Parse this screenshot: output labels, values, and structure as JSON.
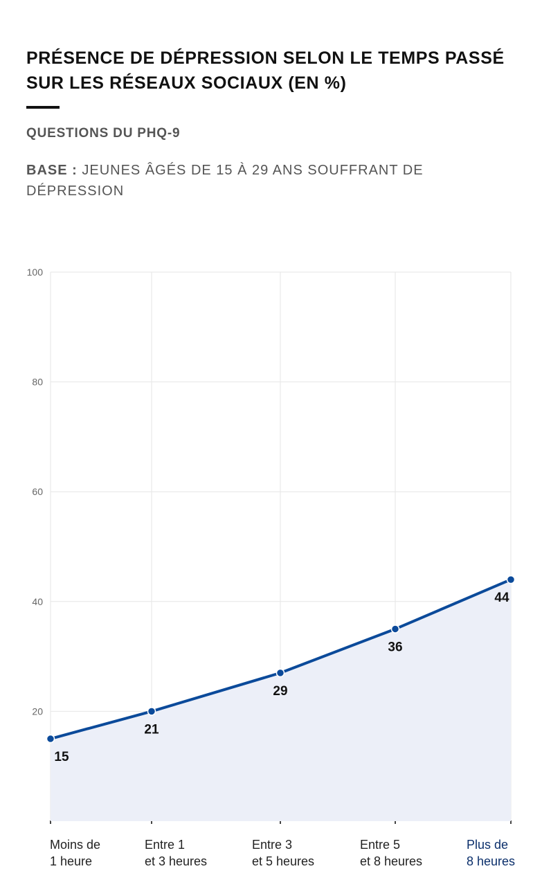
{
  "header": {
    "title": "PRÉSENCE DE DÉPRESSION SELON LE TEMPS PASSÉ SUR LES RÉSEAUX SOCIAUX (EN %)",
    "subtitle": "QUESTIONS DU PHQ-9",
    "base_label": "BASE :",
    "base_text": "JEUNES ÂGÉS DE 15 À 29 ANS SOUFFRANT DE DÉPRESSION"
  },
  "colors": {
    "line": "#0b4a9a",
    "area": "#eceff8",
    "grid": "#e6e6e6",
    "last_category": "#0b2f6b"
  },
  "chart_data": {
    "type": "area",
    "title": "PRÉSENCE DE DÉPRESSION SELON LE TEMPS PASSÉ SUR LES RÉSEAUX SOCIAUX (EN %)",
    "xlabel": "",
    "ylabel": "",
    "ylim": [
      0,
      100
    ],
    "yticks": [
      20,
      40,
      60,
      80,
      100
    ],
    "grid": true,
    "categories": [
      [
        "Moins de",
        "1 heure"
      ],
      [
        "Entre 1",
        "et 3 heures"
      ],
      [
        "Entre 3",
        "et 5 heures"
      ],
      [
        "Entre 5",
        "et 8 heures"
      ],
      [
        "Plus de",
        "8 heures"
      ]
    ],
    "series": [
      {
        "values": [
          15,
          21,
          29,
          36,
          44
        ]
      }
    ],
    "data_labels": [
      "15",
      "21",
      "29",
      "36",
      "44"
    ],
    "positions": [
      15,
      20,
      27,
      35,
      44
    ]
  }
}
